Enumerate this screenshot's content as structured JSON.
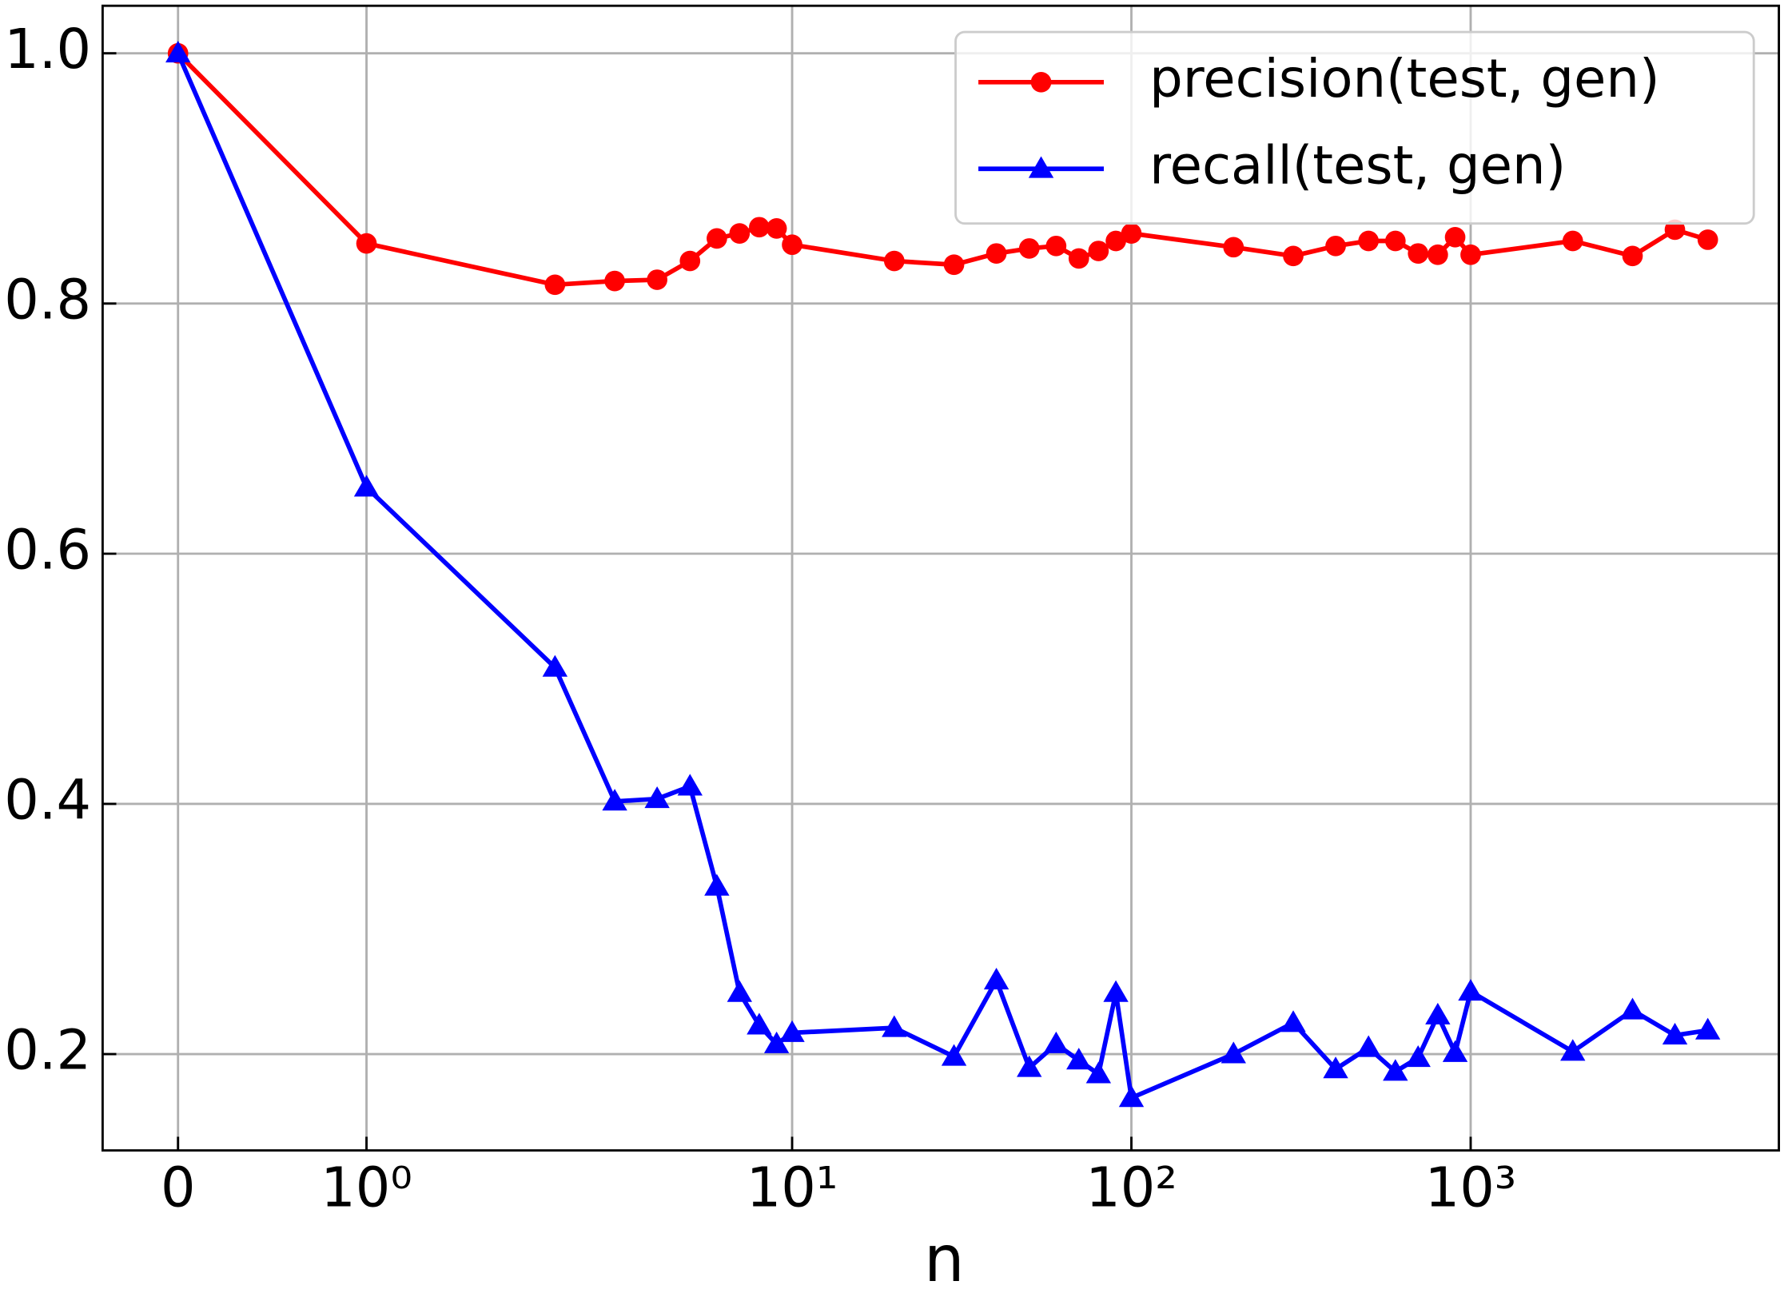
{
  "chart_data": {
    "type": "line",
    "xlabel": "n",
    "xscale": "symlog",
    "linthresh": 2,
    "x": [
      0,
      1,
      2,
      3,
      4,
      5,
      6,
      7,
      8,
      9,
      10,
      20,
      30,
      40,
      50,
      60,
      70,
      80,
      90,
      100,
      200,
      300,
      400,
      500,
      600,
      700,
      800,
      900,
      1000,
      2000,
      3000,
      4000,
      5000
    ],
    "series": [
      {
        "name": "precision(test, gen)",
        "color": "#ff0000",
        "marker": "circle",
        "values": [
          1.0,
          0.848,
          0.815,
          0.818,
          0.819,
          0.834,
          0.852,
          0.856,
          0.861,
          0.86,
          0.847,
          0.834,
          0.831,
          0.84,
          0.844,
          0.846,
          0.836,
          0.842,
          0.85,
          0.856,
          0.845,
          0.838,
          0.846,
          0.85,
          0.85,
          0.84,
          0.839,
          0.853,
          0.839,
          0.85,
          0.838,
          0.859,
          0.851
        ]
      },
      {
        "name": "recall(test, gen)",
        "color": "#0000ff",
        "marker": "triangle",
        "values": [
          1.0,
          0.653,
          0.509,
          0.402,
          0.404,
          0.414,
          0.334,
          0.249,
          0.223,
          0.208,
          0.217,
          0.221,
          0.198,
          0.259,
          0.189,
          0.208,
          0.195,
          0.184,
          0.249,
          0.165,
          0.2,
          0.225,
          0.188,
          0.205,
          0.186,
          0.197,
          0.231,
          0.201,
          0.25,
          0.202,
          0.235,
          0.215,
          0.219
        ]
      }
    ],
    "xlim": [
      -0.4,
      8100
    ],
    "ylim": [
      0.123,
      1.038
    ],
    "xticks": [
      0,
      {
        "value": 1,
        "label": "10⁰"
      },
      {
        "value": 10,
        "label": "10¹"
      },
      {
        "value": 100,
        "label": "10²"
      },
      {
        "value": 1000,
        "label": "10³"
      }
    ],
    "yticks": [
      {
        "value": 0.2,
        "label": "0.2"
      },
      {
        "value": 0.4,
        "label": "0.4"
      },
      {
        "value": 0.6,
        "label": "0.6"
      },
      {
        "value": 0.8,
        "label": "0.8"
      },
      {
        "value": 1.0,
        "label": "1.0"
      }
    ],
    "grid": true,
    "legend": "upper right"
  }
}
